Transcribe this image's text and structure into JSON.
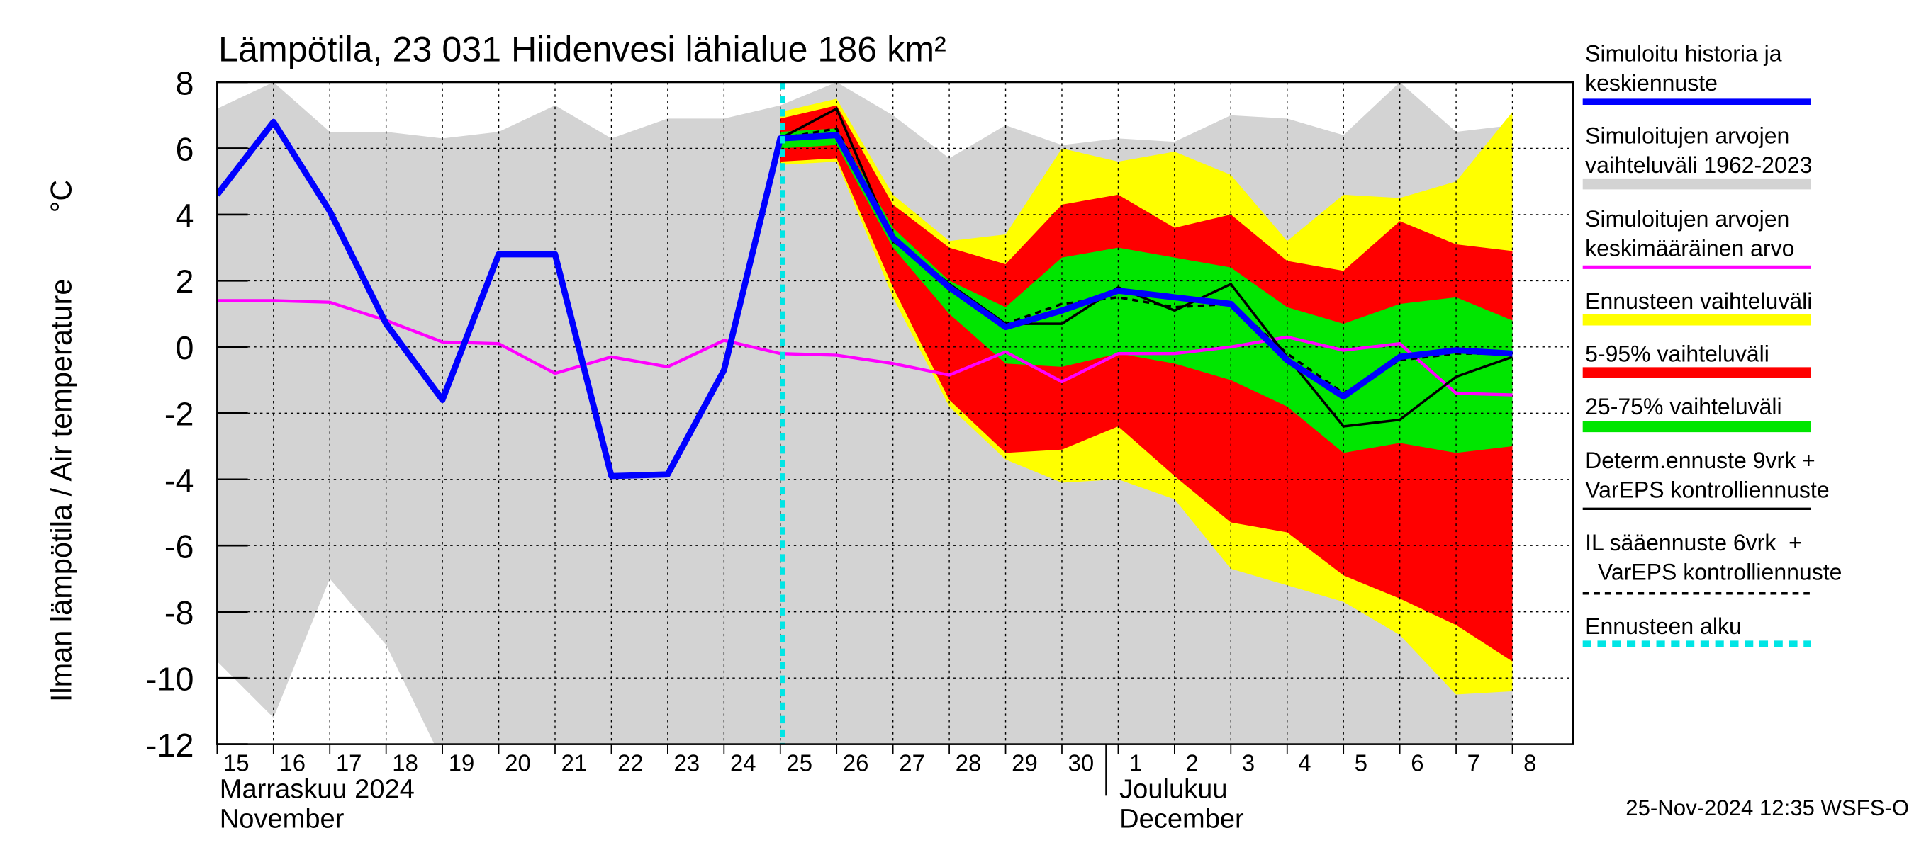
{
  "chart_data": {
    "type": "line",
    "title": "Lämpötila, 23 031 Hiidenvesi lähialue 186 km²",
    "ylabel": "Ilman lämpötila / Air temperature",
    "yunit": "°C",
    "categories": [
      "15",
      "16",
      "17",
      "18",
      "19",
      "20",
      "21",
      "22",
      "23",
      "24",
      "25",
      "26",
      "27",
      "28",
      "29",
      "30",
      "1",
      "2",
      "3",
      "4",
      "5",
      "6",
      "7",
      "8"
    ],
    "months": [
      {
        "at": "15",
        "lines": [
          "Marraskuu 2024",
          "November"
        ]
      },
      {
        "at": "1",
        "lines": [
          "Joulukuu",
          "December"
        ]
      }
    ],
    "forecast_start": "25",
    "ylim": [
      -12,
      8
    ],
    "yticks": [
      8,
      6,
      4,
      2,
      0,
      -2,
      -4,
      -6,
      -8,
      -10,
      -12
    ],
    "grid": true,
    "timestamp": "25-Nov-2024 12:35 WSFS-O",
    "series": [
      {
        "name": [
          "Simuloitu historia ja",
          "keskiennuste"
        ],
        "kind": "line",
        "color": "#0000ff",
        "values": [
          4.6,
          6.8,
          4.1,
          0.7,
          -1.6,
          2.8,
          2.8,
          -3.9,
          -3.85,
          -0.7,
          6.3,
          6.4,
          3.3,
          1.8,
          0.6,
          1.1,
          1.7,
          1.5,
          1.3,
          -0.4,
          -1.5,
          -0.3,
          -0.1,
          -0.2
        ]
      },
      {
        "name": [
          "Simuloitujen arvojen",
          "vaihteluväli 1962-2023"
        ],
        "kind": "band",
        "color": "#d3d3d3",
        "high": [
          7.2,
          8.0,
          6.5,
          6.5,
          6.3,
          6.5,
          7.3,
          6.3,
          6.9,
          6.9,
          7.3,
          8.0,
          7.0,
          5.7,
          6.7,
          6.1,
          6.3,
          6.2,
          7.0,
          6.9,
          6.4,
          8.0,
          6.5,
          6.7
        ],
        "low": [
          -9.5,
          -11.2,
          -7.0,
          -9.0,
          -12.5,
          -12.5,
          -12.5,
          -12.5,
          -12.5,
          -12.5,
          -12.5,
          -12.5,
          -12.5,
          -12.5,
          -12.5,
          -12.5,
          -12.5,
          -12.5,
          -12.5,
          -12.5,
          -12.5,
          -12.5,
          -12.5,
          -12.5
        ]
      },
      {
        "name": [
          "Simuloitujen arvojen",
          "keskimääräinen arvo"
        ],
        "kind": "line",
        "color": "#ff00ff",
        "values": [
          1.4,
          1.4,
          1.35,
          0.8,
          0.15,
          0.1,
          -0.8,
          -0.3,
          -0.6,
          0.2,
          -0.2,
          -0.25,
          -0.5,
          -0.85,
          -0.15,
          -1.05,
          -0.2,
          -0.2,
          0.0,
          0.3,
          -0.1,
          0.1,
          -1.4,
          -1.45
        ]
      },
      {
        "name": [
          "Ennusteen vaihteluväli"
        ],
        "kind": "band",
        "color": "#ffff00",
        "high": [
          null,
          null,
          null,
          null,
          null,
          null,
          null,
          null,
          null,
          null,
          7.1,
          7.5,
          4.6,
          3.2,
          3.4,
          6.0,
          5.6,
          5.9,
          5.2,
          3.2,
          4.6,
          4.5,
          5.0,
          7.1
        ],
        "low": [
          null,
          null,
          null,
          null,
          null,
          null,
          null,
          null,
          null,
          null,
          5.5,
          5.6,
          1.5,
          -1.8,
          -3.4,
          -4.1,
          -4.0,
          -4.6,
          -6.7,
          -7.2,
          -7.7,
          -8.7,
          -10.5,
          -10.4
        ]
      },
      {
        "name": [
          "5-95% vaihteluväli"
        ],
        "kind": "band",
        "color": "#ff0000",
        "high": [
          null,
          null,
          null,
          null,
          null,
          null,
          null,
          null,
          null,
          null,
          6.9,
          7.3,
          4.3,
          3.0,
          2.5,
          4.3,
          4.6,
          3.6,
          4.0,
          2.6,
          2.3,
          3.8,
          3.1,
          2.9
        ],
        "low": [
          null,
          null,
          null,
          null,
          null,
          null,
          null,
          null,
          null,
          null,
          5.6,
          5.7,
          1.8,
          -1.6,
          -3.2,
          -3.1,
          -2.4,
          -3.9,
          -5.3,
          -5.6,
          -6.9,
          -7.6,
          -8.4,
          -9.5
        ]
      },
      {
        "name": [
          "25-75% vaihteluväli"
        ],
        "kind": "band",
        "color": "#00e600",
        "high": [
          null,
          null,
          null,
          null,
          null,
          null,
          null,
          null,
          null,
          null,
          6.5,
          6.6,
          3.6,
          2.0,
          1.2,
          2.7,
          3.0,
          2.7,
          2.4,
          1.2,
          0.7,
          1.3,
          1.5,
          0.8
        ],
        "low": [
          null,
          null,
          null,
          null,
          null,
          null,
          null,
          null,
          null,
          null,
          6.0,
          6.1,
          3.0,
          1.0,
          -0.5,
          -0.6,
          -0.2,
          -0.5,
          -1.0,
          -1.8,
          -3.2,
          -2.9,
          -3.2,
          -3.0
        ]
      },
      {
        "name": [
          "Determ.ennuste 9vrk +",
          "VarEPS kontrolliennuste"
        ],
        "kind": "line",
        "color": "#000000",
        "values": [
          null,
          null,
          null,
          null,
          null,
          null,
          null,
          null,
          null,
          null,
          6.3,
          7.2,
          3.2,
          1.9,
          0.7,
          0.7,
          1.8,
          1.1,
          1.9,
          -0.3,
          -2.4,
          -2.2,
          -0.9,
          -0.3
        ]
      },
      {
        "name": [
          "IL sääennuste 6vrk  +",
          "  VarEPS kontrolliennuste"
        ],
        "kind": "dashed",
        "color": "#000000",
        "values": [
          null,
          null,
          null,
          null,
          null,
          null,
          null,
          null,
          null,
          null,
          6.3,
          6.6,
          3.3,
          1.9,
          0.7,
          1.3,
          1.5,
          1.2,
          1.3,
          -0.2,
          -1.4,
          -0.4,
          -0.2,
          -0.2
        ]
      },
      {
        "name": [
          "Ennusteen alku"
        ],
        "kind": "start",
        "color": "#00e5e5"
      }
    ]
  }
}
